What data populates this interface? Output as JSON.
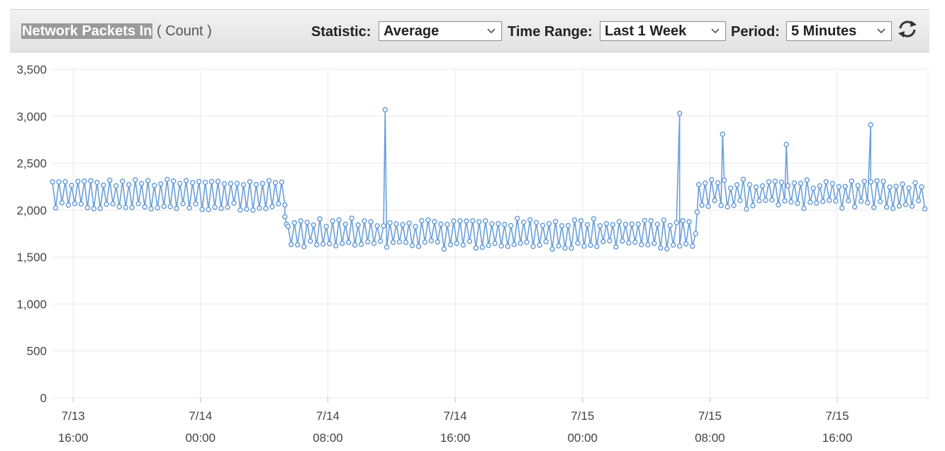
{
  "header": {
    "metric_name": "Network Packets In",
    "unit": "( Count )",
    "statistic_label": "Statistic:",
    "statistic_value": "Average",
    "time_range_label": "Time Range:",
    "time_range_value": "Last 1 Week",
    "period_label": "Period:",
    "period_value": "5 Minutes",
    "refresh_icon": "refresh-icon"
  },
  "colors": {
    "series": "#6a9fd8",
    "grid": "#e8e8e8",
    "axis_text": "#444444"
  },
  "chart_data": {
    "type": "line",
    "title": "Network Packets In",
    "ylabel": "Count",
    "ylim": [
      0,
      3500
    ],
    "yticks": [
      "0",
      "500",
      "1,000",
      "1,500",
      "2,000",
      "2,500",
      "3,000",
      "3,500"
    ],
    "ytick_values": [
      0,
      500,
      1000,
      1500,
      2000,
      2500,
      3000,
      3500
    ],
    "xlim_hours": [
      -1.3,
      53.7
    ],
    "xticks": [
      {
        "date": "7/13",
        "time": "16:00",
        "hour": 0
      },
      {
        "date": "7/14",
        "time": "00:00",
        "hour": 8
      },
      {
        "date": "7/14",
        "time": "08:00",
        "hour": 16
      },
      {
        "date": "7/14",
        "time": "16:00",
        "hour": 24
      },
      {
        "date": "7/15",
        "time": "00:00",
        "hour": 32
      },
      {
        "date": "7/15",
        "time": "08:00",
        "hour": 40
      },
      {
        "date": "7/15",
        "time": "16:00",
        "hour": 48
      }
    ],
    "segments": [
      {
        "start": -1.3,
        "end": 13.3,
        "high": 2290,
        "low": 2040,
        "jitter": 40
      },
      {
        "start": 13.5,
        "end": 39.0,
        "high": 1870,
        "low": 1630,
        "jitter": 45
      },
      {
        "start": 39.3,
        "end": 53.6,
        "high": 2280,
        "low": 2060,
        "jitter": 50
      }
    ],
    "transitions": [
      {
        "hour": 13.3,
        "value": 1930
      },
      {
        "hour": 13.4,
        "value": 1850
      },
      {
        "hour": 39.1,
        "value": 1750
      },
      {
        "hour": 39.2,
        "value": 1980
      }
    ],
    "spikes": [
      {
        "hour": 19.6,
        "value": 3070
      },
      {
        "hour": 38.1,
        "value": 3030
      },
      {
        "hour": 40.8,
        "value": 2810
      },
      {
        "hour": 44.8,
        "value": 2700
      },
      {
        "hour": 50.1,
        "value": 2910
      }
    ],
    "grid": true,
    "legend": "none"
  }
}
